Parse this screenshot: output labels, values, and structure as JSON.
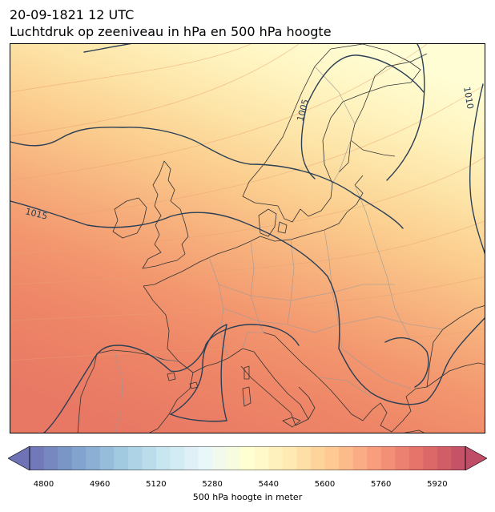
{
  "header": {
    "datetime": "20-09-1821 12 UTC",
    "subtitle": "Luchtdruk op zeeniveau in hPa en 500 hPa hoogte"
  },
  "map": {
    "region": "Europe",
    "isobar_labels": [
      "1005",
      "1010",
      "1015"
    ],
    "colors": {
      "coast": "#333333",
      "border": "#9a9a9a",
      "isobar": "#2b3f55"
    }
  },
  "colorbar": {
    "label": "500 hPa hoogte in meter",
    "ticks": [
      "4800",
      "4960",
      "5120",
      "5280",
      "5440",
      "5600",
      "5760",
      "5920"
    ],
    "tick_values": [
      4800,
      4960,
      5120,
      5280,
      5440,
      5600,
      5760,
      5920
    ],
    "range": [
      4760,
      6000
    ],
    "bins": 31,
    "colormap": "RdYlBu_r, alpha 0.7"
  }
}
